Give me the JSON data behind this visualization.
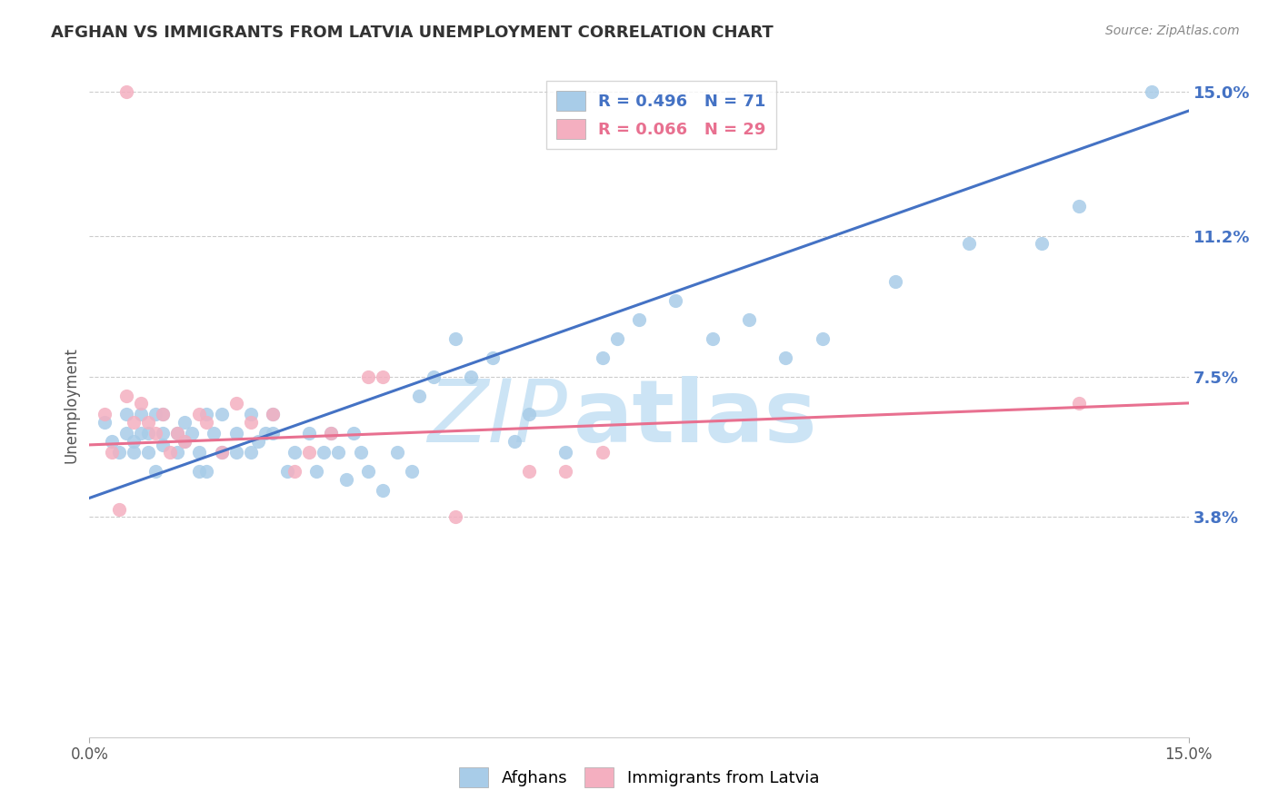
{
  "title": "AFGHAN VS IMMIGRANTS FROM LATVIA UNEMPLOYMENT CORRELATION CHART",
  "source": "Source: ZipAtlas.com",
  "ylabel": "Unemployment",
  "x_min": 0.0,
  "x_max": 0.15,
  "y_min": -0.02,
  "y_max": 0.155,
  "y_ticks": [
    0.038,
    0.075,
    0.112,
    0.15
  ],
  "y_tick_labels": [
    "3.8%",
    "7.5%",
    "11.2%",
    "15.0%"
  ],
  "x_ticks": [
    0.0,
    0.15
  ],
  "x_tick_labels": [
    "0.0%",
    "15.0%"
  ],
  "blue_color": "#a8cce8",
  "pink_color": "#f4afc0",
  "blue_line_color": "#4472c4",
  "pink_line_color": "#e87090",
  "right_tick_color": "#4472c4",
  "watermark_color": "#cce4f5",
  "watermark": "ZIPatlas",
  "grid_color": "#cccccc",
  "blue_scatter_x": [
    0.002,
    0.003,
    0.004,
    0.005,
    0.005,
    0.006,
    0.006,
    0.007,
    0.007,
    0.008,
    0.008,
    0.009,
    0.009,
    0.01,
    0.01,
    0.01,
    0.012,
    0.012,
    0.013,
    0.013,
    0.014,
    0.015,
    0.015,
    0.016,
    0.016,
    0.017,
    0.018,
    0.018,
    0.02,
    0.02,
    0.022,
    0.022,
    0.023,
    0.024,
    0.025,
    0.025,
    0.027,
    0.028,
    0.03,
    0.031,
    0.032,
    0.033,
    0.034,
    0.035,
    0.036,
    0.037,
    0.038,
    0.04,
    0.042,
    0.044,
    0.045,
    0.047,
    0.05,
    0.052,
    0.055,
    0.058,
    0.06,
    0.065,
    0.07,
    0.072,
    0.075,
    0.08,
    0.085,
    0.09,
    0.095,
    0.1,
    0.11,
    0.12,
    0.13,
    0.135,
    0.145
  ],
  "blue_scatter_y": [
    0.063,
    0.058,
    0.055,
    0.065,
    0.06,
    0.058,
    0.055,
    0.065,
    0.06,
    0.055,
    0.06,
    0.065,
    0.05,
    0.057,
    0.06,
    0.065,
    0.055,
    0.06,
    0.063,
    0.058,
    0.06,
    0.05,
    0.055,
    0.065,
    0.05,
    0.06,
    0.055,
    0.065,
    0.06,
    0.055,
    0.065,
    0.055,
    0.058,
    0.06,
    0.065,
    0.06,
    0.05,
    0.055,
    0.06,
    0.05,
    0.055,
    0.06,
    0.055,
    0.048,
    0.06,
    0.055,
    0.05,
    0.045,
    0.055,
    0.05,
    0.07,
    0.075,
    0.085,
    0.075,
    0.08,
    0.058,
    0.065,
    0.055,
    0.08,
    0.085,
    0.09,
    0.095,
    0.085,
    0.09,
    0.08,
    0.085,
    0.1,
    0.11,
    0.11,
    0.12,
    0.15
  ],
  "pink_scatter_x": [
    0.002,
    0.003,
    0.004,
    0.005,
    0.006,
    0.007,
    0.008,
    0.009,
    0.01,
    0.011,
    0.012,
    0.013,
    0.015,
    0.016,
    0.018,
    0.02,
    0.022,
    0.025,
    0.028,
    0.03,
    0.033,
    0.038,
    0.04,
    0.05,
    0.06,
    0.065,
    0.07,
    0.135,
    0.005
  ],
  "pink_scatter_y": [
    0.065,
    0.055,
    0.04,
    0.07,
    0.063,
    0.068,
    0.063,
    0.06,
    0.065,
    0.055,
    0.06,
    0.058,
    0.065,
    0.063,
    0.055,
    0.068,
    0.063,
    0.065,
    0.05,
    0.055,
    0.06,
    0.075,
    0.075,
    0.038,
    0.05,
    0.05,
    0.055,
    0.068,
    0.15
  ],
  "blue_trend_x0": 0.0,
  "blue_trend_y0": 0.043,
  "blue_trend_x1": 0.15,
  "blue_trend_y1": 0.145,
  "pink_trend_x0": 0.0,
  "pink_trend_y0": 0.057,
  "pink_trend_x1": 0.15,
  "pink_trend_y1": 0.068
}
